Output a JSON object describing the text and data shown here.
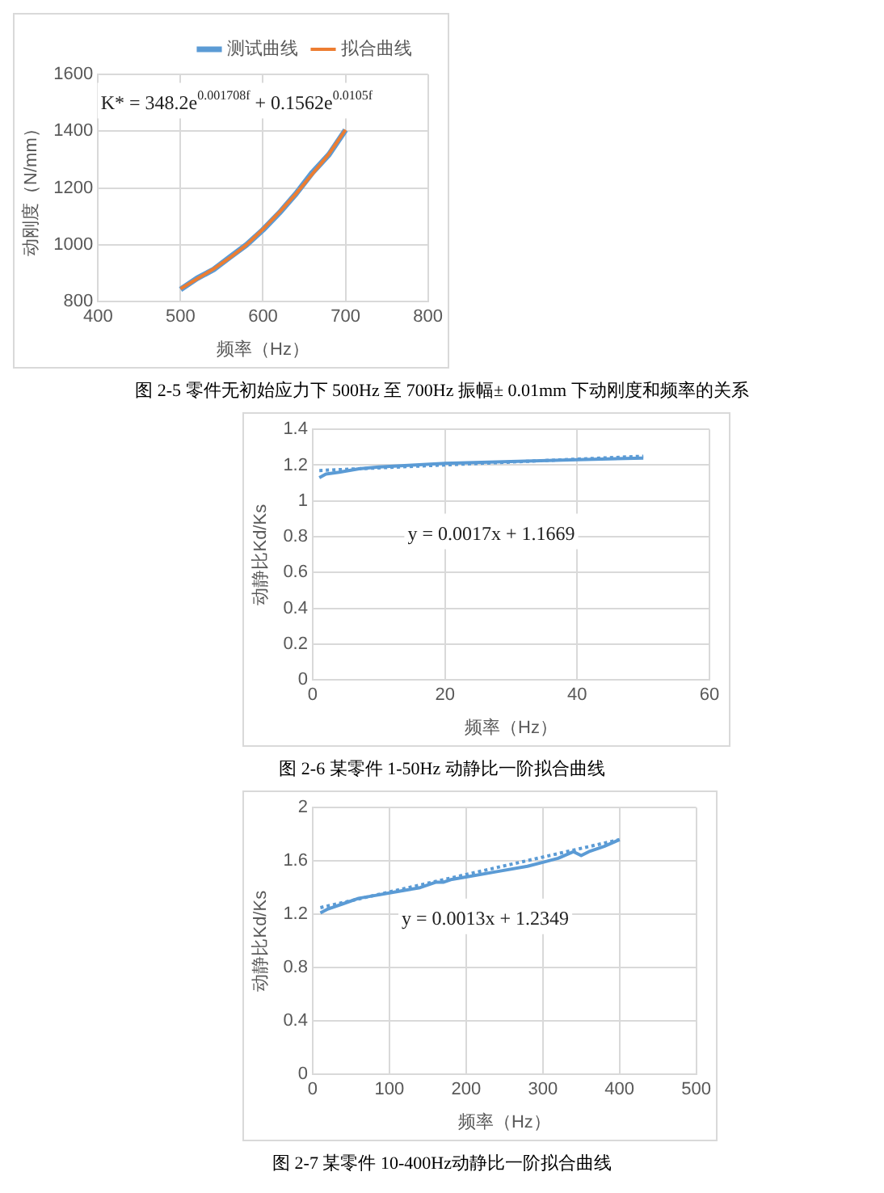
{
  "chart_data": [
    {
      "type": "line",
      "title": "图 2-5 零件无初始应力下 500Hz 至 700Hz 振幅± 0.01mm 下动刚度和频率的关系",
      "xlabel": "频率（Hz）",
      "ylabel": "动刚度（N/mm）",
      "xlim": [
        400,
        800
      ],
      "xticks": [
        400,
        500,
        600,
        700,
        800
      ],
      "ylim": [
        800,
        1600
      ],
      "yticks": [
        800,
        1000,
        1200,
        1400,
        1600
      ],
      "grid": true,
      "legend": "top right",
      "marker": "none",
      "annotations": [
        "K* = 348.2e$^{0.001708f}$ + 0.1562e$^{0.0105f}$"
      ],
      "x": [
        500,
        520,
        540,
        560,
        580,
        600,
        620,
        640,
        660,
        680,
        700
      ],
      "series": [
        {
          "name": "测试曲线",
          "color": "#5b9bd5",
          "values": [
            843,
            882,
            913,
            957,
            1000,
            1053,
            1113,
            1180,
            1255,
            1318,
            1404
          ]
        },
        {
          "name": "拟合曲线",
          "color": "#ed7d31",
          "values": [
            845,
            880,
            915,
            955,
            1000,
            1055,
            1115,
            1180,
            1250,
            1320,
            1405
          ]
        }
      ]
    },
    {
      "type": "line",
      "title": "图 2-6 某零件 1-50Hz 动静比一阶拟合曲线",
      "xlabel": "频率（Hz）",
      "ylabel": "动静比Kd/Ks",
      "xlim": [
        0,
        60
      ],
      "xticks": [
        0,
        20,
        40,
        60
      ],
      "ylim": [
        0,
        1.4
      ],
      "yticks": [
        0,
        0.2,
        0.4,
        0.6,
        0.8,
        1,
        1.2,
        1.4
      ],
      "grid": true,
      "marker": "none",
      "annotations": [
        "y = 0.0017x + 1.1669"
      ],
      "series": [
        {
          "color": "#5b9bd5",
          "x": [
            1,
            2,
            4,
            7,
            10,
            15,
            20,
            30,
            40,
            50
          ],
          "values": [
            1.13,
            1.15,
            1.16,
            1.18,
            1.19,
            1.2,
            1.21,
            1.22,
            1.23,
            1.24
          ]
        },
        {
          "color": "#5b9bd5",
          "line_style": "dotted",
          "x": [
            1,
            50
          ],
          "values": [
            1.17,
            1.25
          ]
        }
      ]
    },
    {
      "type": "line",
      "title": "图 2-7 某零件 10-400Hz动静比一阶拟合曲线",
      "xlabel": "频率（Hz）",
      "ylabel": "动静比Kd/Ks",
      "xlim": [
        0,
        500
      ],
      "xticks": [
        0,
        100,
        200,
        300,
        400,
        500
      ],
      "ylim": [
        0,
        2
      ],
      "yticks": [
        0,
        0.4,
        0.8,
        1.2,
        1.6,
        2
      ],
      "grid": true,
      "marker": "none",
      "annotations": [
        "y = 0.0013x + 1.2349"
      ],
      "series": [
        {
          "color": "#5b9bd5",
          "x": [
            10,
            20,
            40,
            60,
            80,
            100,
            120,
            140,
            160,
            170,
            180,
            200,
            240,
            280,
            300,
            320,
            340,
            350,
            360,
            380,
            400
          ],
          "values": [
            1.21,
            1.24,
            1.28,
            1.32,
            1.34,
            1.36,
            1.38,
            1.4,
            1.44,
            1.44,
            1.46,
            1.48,
            1.52,
            1.56,
            1.59,
            1.62,
            1.67,
            1.64,
            1.67,
            1.71,
            1.76
          ]
        },
        {
          "color": "#5b9bd5",
          "line_style": "dotted",
          "x": [
            10,
            400
          ],
          "values": [
            1.25,
            1.76
          ]
        }
      ]
    }
  ]
}
